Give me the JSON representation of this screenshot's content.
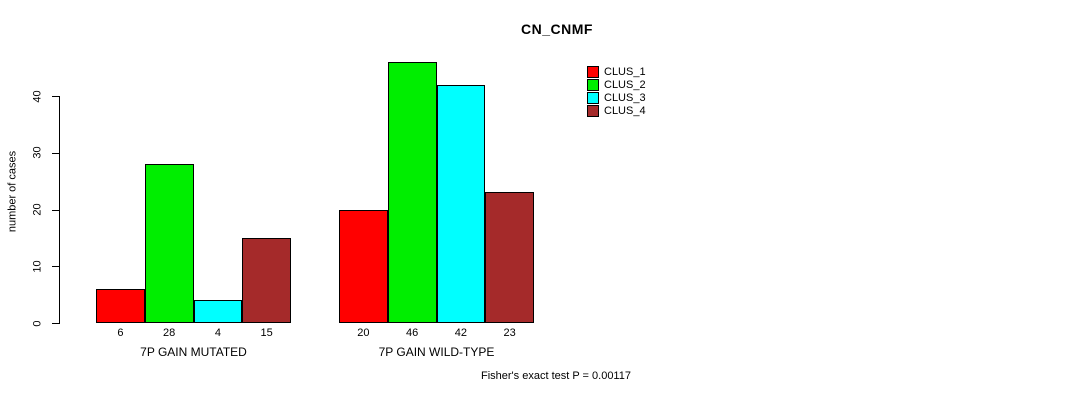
{
  "chart_data": {
    "type": "bar",
    "title": "CN_CNMF",
    "xlabel": "",
    "ylabel": "number of cases",
    "ylim": [
      0,
      40
    ],
    "yticks": [
      0,
      10,
      20,
      30,
      40
    ],
    "grid": false,
    "legend_position": "top-right",
    "categories": [
      "7P GAIN MUTATED",
      "7P GAIN WILD-TYPE"
    ],
    "series": [
      {
        "name": "CLUS_1",
        "color": "#FF0000",
        "values": [
          6,
          20
        ]
      },
      {
        "name": "CLUS_2",
        "color": "#00EE00",
        "values": [
          28,
          46
        ]
      },
      {
        "name": "CLUS_3",
        "color": "#00FFFF",
        "values": [
          4,
          42
        ]
      },
      {
        "name": "CLUS_4",
        "color": "#A52A2A",
        "values": [
          15,
          23
        ]
      }
    ],
    "bar_value_labels_shown": true,
    "annotation": "Fisher's exact test P = 0.00117"
  },
  "colors": {
    "background": "#FFFFFF",
    "axis": "#000000",
    "text": "#000000"
  }
}
